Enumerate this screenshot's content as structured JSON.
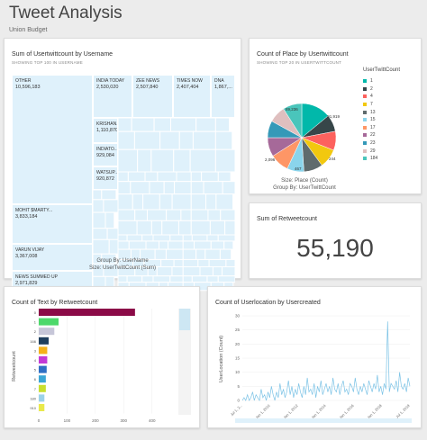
{
  "header": {
    "title": "Tweet Analysis",
    "subtitle": "Union Budget"
  },
  "treemap": {
    "title": "Sum of Usertwittcount by Username",
    "subtitle": "SHOWING TOP 100 IN USERNAME",
    "footer_group": "Group By: UserName",
    "footer_size": "Size: UserTwittCount (Sum)",
    "tiles": [
      {
        "name": "OTHER",
        "value": "10,596,183"
      },
      {
        "name": "INDIA TODAY",
        "value": "2,530,020"
      },
      {
        "name": "ZEE NEWS",
        "value": "2,507,840"
      },
      {
        "name": "TIMES NOW",
        "value": "2,407,404"
      },
      {
        "name": "DNA",
        "value": "1,867,..."
      },
      {
        "name": "KRISHAN...",
        "value": "1,110,870"
      },
      {
        "name": "INDIATO...",
        "value": "929,084"
      },
      {
        "name": "WATSUP...",
        "value": "920,872"
      },
      {
        "name": "MOHIT $MARTY...",
        "value": "3,833,184"
      },
      {
        "name": "VARUN VIJAY",
        "value": "3,367,008"
      },
      {
        "name": "NEWS SUMMED UP",
        "value": "2,971,829"
      }
    ]
  },
  "pie": {
    "title": "Count of Place by Usertwittcount",
    "subtitle": "SHOWING TOP 20 IN USERTWITTCOUNT",
    "legend_title": "UserTwittCount",
    "footer_size": "Size: Place (Count)",
    "footer_group": "Group By: UserTwittCount",
    "labels": [
      "89,236",
      "91,919",
      "244",
      "2,096",
      "467"
    ],
    "chart_data": {
      "type": "pie",
      "categories": [
        "1",
        "2",
        "4",
        "7",
        "13",
        "15",
        "17",
        "22",
        "23",
        "29",
        "184"
      ],
      "values": [
        14,
        8,
        9,
        9,
        9,
        8,
        9,
        9,
        8,
        8,
        9
      ],
      "colors": [
        "#01b8aa",
        "#374649",
        "#fd625e",
        "#f2c80f",
        "#5f6b6d",
        "#8ad4eb",
        "#fe9666",
        "#a66999",
        "#3599b8",
        "#dfbfbf",
        "#4ac5bb",
        "#e7298a",
        "#6b8ee8",
        "#fb8072"
      ]
    }
  },
  "kpi": {
    "title": "Sum of Retweetcount",
    "value": "55,190"
  },
  "bar": {
    "title": "Count of Text by Retweetcount",
    "ylabel": "Retweetcount",
    "chart_data": {
      "type": "bar",
      "categories": [
        "0",
        "1",
        "2",
        "166",
        "3",
        "4",
        "5",
        "6",
        "7",
        "180",
        "910"
      ],
      "values": [
        340,
        70,
        55,
        35,
        30,
        30,
        28,
        25,
        25,
        20,
        20
      ],
      "colors": [
        "#8b0a47",
        "#4dd96b",
        "#c6c6d8",
        "#1f3f5e",
        "#f5b21a",
        "#c43ad6",
        "#2f6fc4",
        "#3aa6d6",
        "#c9df2e",
        "#9bd2ea",
        "#e9e94b"
      ],
      "xticks": [
        "0",
        "100",
        "200",
        "300",
        "400"
      ],
      "xlim": [
        0,
        420
      ]
    }
  },
  "line": {
    "title": "Count of Userlocation by Usercreated",
    "ylabel": "UserLocation (Count)",
    "chart_data": {
      "type": "line",
      "yticks": [
        "0",
        "5",
        "10",
        "15",
        "20",
        "25",
        "30"
      ],
      "ylim": [
        0,
        30
      ],
      "xticks": [
        "Jul 1, 2...",
        "Jan 1, 2010",
        "Jan 1, 2012",
        "Jan 1, 2014",
        "Jan 1, 2016",
        "Jan 1, 2018",
        "Jul 1, 2019"
      ],
      "values": [
        0,
        1,
        0,
        2,
        0,
        1,
        3,
        0,
        2,
        1,
        0,
        4,
        1,
        2,
        0,
        3,
        1,
        5,
        2,
        0,
        3,
        1,
        6,
        2,
        4,
        1,
        3,
        7,
        2,
        5,
        1,
        4,
        2,
        6,
        3,
        1,
        5,
        2,
        8,
        3,
        4,
        2,
        6,
        1,
        5,
        3,
        7,
        2,
        4,
        6,
        3,
        5,
        2,
        8,
        4,
        3,
        6,
        2,
        5,
        7,
        3,
        4,
        2,
        6,
        5,
        3,
        8,
        4,
        2,
        5,
        3,
        6,
        4,
        2,
        7,
        5,
        3,
        6,
        4,
        9,
        3,
        5,
        2,
        6,
        4,
        28,
        3,
        6,
        5,
        4,
        7,
        3,
        10,
        5,
        4,
        6,
        3,
        8,
        5
      ]
    }
  }
}
